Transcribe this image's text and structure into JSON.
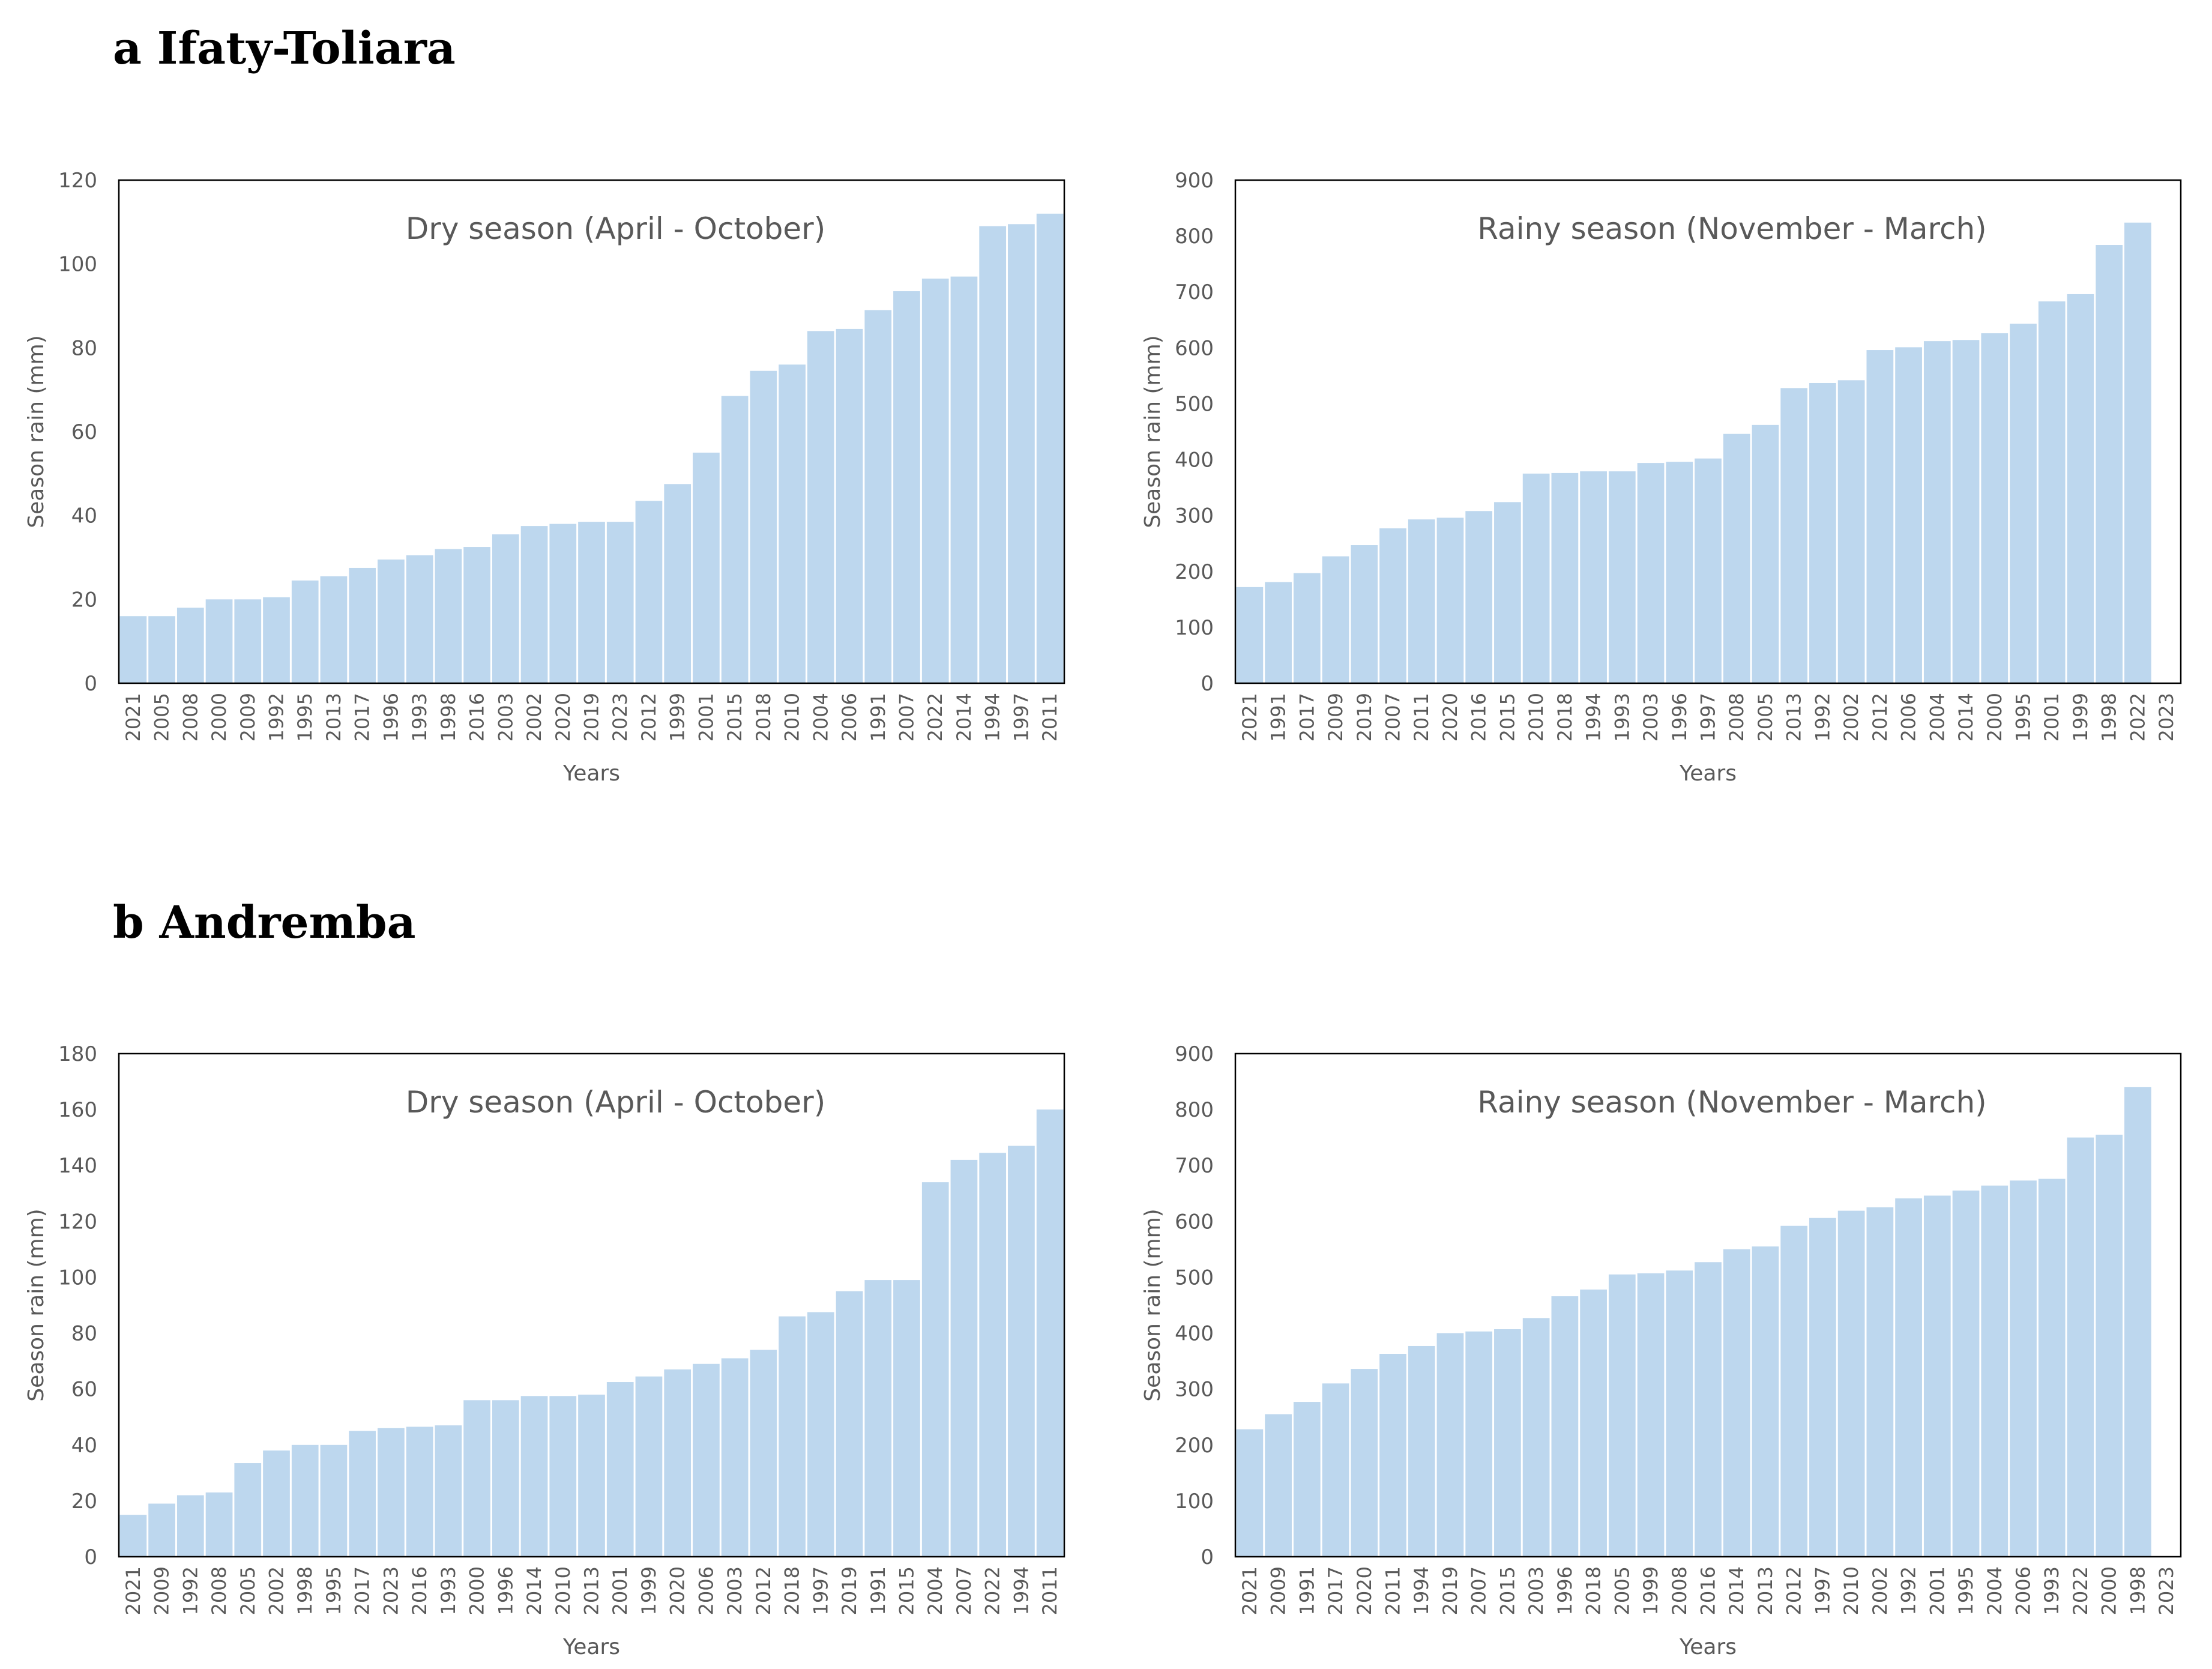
{
  "sections": [
    {
      "title": "a Ifaty-Toliara"
    },
    {
      "title": "b Andremba"
    }
  ],
  "colors": {
    "bar": "#bdd7ee",
    "axis": "#000000",
    "text": "#595959"
  },
  "chart_data": [
    {
      "type": "bar",
      "title": "Dry season (April - October)",
      "xlabel": "Years",
      "ylabel": "Season rain (mm)",
      "ylim": [
        0,
        120
      ],
      "yticks": [
        0,
        20,
        40,
        60,
        80,
        100,
        120
      ],
      "categories": [
        "2021",
        "2005",
        "2008",
        "2000",
        "2009",
        "1992",
        "1995",
        "2013",
        "2017",
        "1996",
        "1993",
        "1998",
        "2016",
        "2003",
        "2002",
        "2020",
        "2019",
        "2023",
        "2012",
        "1999",
        "2001",
        "2015",
        "2018",
        "2010",
        "2004",
        "2006",
        "1991",
        "2007",
        "2022",
        "2014",
        "1994",
        "1997",
        "2011"
      ],
      "values": [
        16,
        16,
        18,
        20,
        20,
        20.5,
        24.5,
        25.5,
        27.5,
        29.5,
        30.5,
        32,
        32.5,
        35.5,
        37.5,
        38,
        38.5,
        38.5,
        43.5,
        47.5,
        55,
        68.5,
        74.5,
        76,
        84,
        84.5,
        89,
        93.5,
        96.5,
        97,
        109,
        109.5,
        112
      ]
    },
    {
      "type": "bar",
      "title": "Rainy season (November - March)",
      "xlabel": "Years",
      "ylabel": "Season rain (mm)",
      "ylim": [
        0,
        900
      ],
      "yticks": [
        0,
        100,
        200,
        300,
        400,
        500,
        600,
        700,
        800,
        900
      ],
      "categories": [
        "2021",
        "1991",
        "2017",
        "2009",
        "2019",
        "2007",
        "2011",
        "2020",
        "2016",
        "2015",
        "2010",
        "2018",
        "1994",
        "1993",
        "2003",
        "1996",
        "1997",
        "2008",
        "2005",
        "2013",
        "1992",
        "2002",
        "2012",
        "2006",
        "2004",
        "2014",
        "2000",
        "1995",
        "2001",
        "1999",
        "1998",
        "2022",
        "2023"
      ],
      "values": [
        172,
        181,
        197,
        227,
        247,
        277,
        293,
        296,
        308,
        324,
        375,
        376,
        379,
        379,
        394,
        396,
        402,
        446,
        462,
        528,
        537,
        542,
        596,
        601,
        612,
        614,
        626,
        643,
        683,
        696,
        784,
        824,
        0
      ]
    },
    {
      "type": "bar",
      "title": "Dry season (April - October)",
      "xlabel": "Years",
      "ylabel": "Season rain (mm)",
      "ylim": [
        0,
        180
      ],
      "yticks": [
        0,
        20,
        40,
        60,
        80,
        100,
        120,
        140,
        160,
        180
      ],
      "categories": [
        "2021",
        "2009",
        "1992",
        "2008",
        "2005",
        "2002",
        "1998",
        "1995",
        "2017",
        "2023",
        "2016",
        "1993",
        "2000",
        "1996",
        "2014",
        "2010",
        "2013",
        "2001",
        "1999",
        "2020",
        "2006",
        "2003",
        "2012",
        "2018",
        "1997",
        "2019",
        "1991",
        "2015",
        "2004",
        "2007",
        "2022",
        "1994",
        "2011"
      ],
      "values": [
        15,
        19,
        22,
        23,
        33.5,
        38,
        40,
        40,
        45,
        46,
        46.5,
        47,
        56,
        56,
        57.5,
        57.5,
        58,
        62.5,
        64.5,
        67,
        69,
        71,
        74,
        86,
        87.5,
        95,
        99,
        99,
        134,
        142,
        144.5,
        147,
        160
      ]
    },
    {
      "type": "bar",
      "title": "Rainy season (November - March)",
      "xlabel": "Years",
      "ylabel": "Season rain (mm)",
      "ylim": [
        0,
        900
      ],
      "yticks": [
        0,
        100,
        200,
        300,
        400,
        500,
        600,
        700,
        800,
        900
      ],
      "categories": [
        "2021",
        "2009",
        "1991",
        "2017",
        "2020",
        "2011",
        "1994",
        "2019",
        "2007",
        "2015",
        "2003",
        "1996",
        "2018",
        "2005",
        "1999",
        "2008",
        "2016",
        "2014",
        "2013",
        "2012",
        "1997",
        "2010",
        "2002",
        "1992",
        "2001",
        "1995",
        "2004",
        "2006",
        "1993",
        "2022",
        "2000",
        "1998",
        "2023"
      ],
      "values": [
        228,
        255,
        277,
        310,
        336,
        363,
        377,
        400,
        403,
        407,
        427,
        466,
        478,
        505,
        507,
        512,
        527,
        550,
        555,
        592,
        606,
        619,
        625,
        641,
        646,
        655,
        664,
        673,
        676,
        750,
        755,
        840,
        0
      ]
    }
  ]
}
